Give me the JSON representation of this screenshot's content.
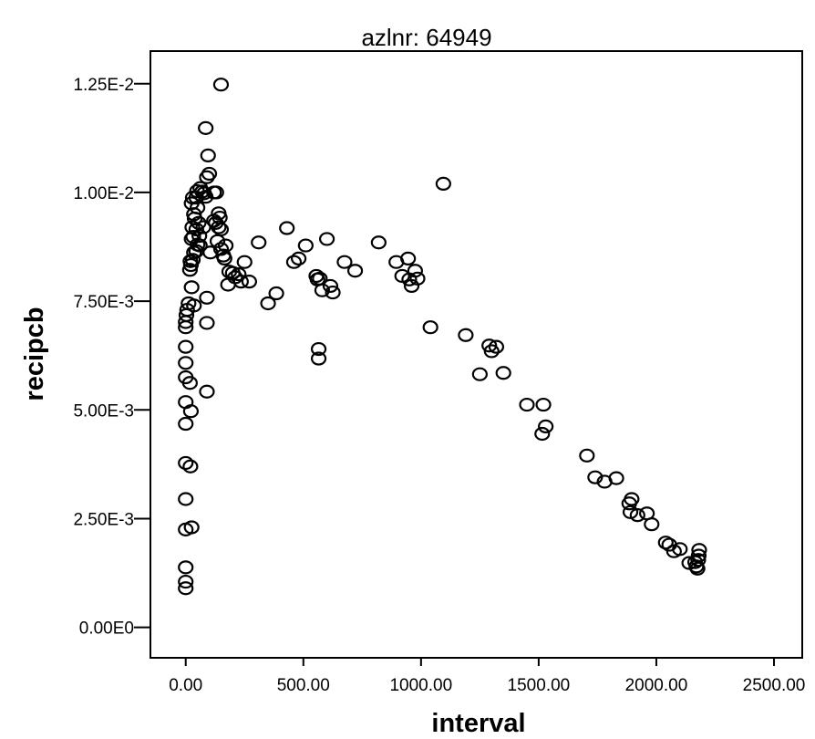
{
  "chart_data": {
    "type": "scatter",
    "title": "azlnr: 64949",
    "xlabel": "interval",
    "ylabel": "recipcb",
    "xlim": [
      -150,
      2620
    ],
    "ylim": [
      -0.0007,
      0.01325
    ],
    "x_ticks": [
      {
        "value": 0,
        "label": "0.00"
      },
      {
        "value": 500,
        "label": "500.00"
      },
      {
        "value": 1000,
        "label": "1000.00"
      },
      {
        "value": 1500,
        "label": "1500.00"
      },
      {
        "value": 2000,
        "label": "2000.00"
      },
      {
        "value": 2500,
        "label": "2500.00"
      }
    ],
    "y_ticks": [
      {
        "value": 0,
        "label": "0.00E0"
      },
      {
        "value": 0.0025,
        "label": "2.50E-3"
      },
      {
        "value": 0.005,
        "label": "5.00E-3"
      },
      {
        "value": 0.0075,
        "label": "7.50E-3"
      },
      {
        "value": 0.01,
        "label": "1.00E-2"
      },
      {
        "value": 0.0125,
        "label": "1.25E-2"
      }
    ],
    "marker": "open-circle",
    "grid": false,
    "legend": "none",
    "points": [
      [
        0,
        0.0009
      ],
      [
        0,
        0.00105
      ],
      [
        0,
        0.00138
      ],
      [
        0,
        0.00225
      ],
      [
        0,
        0.00295
      ],
      [
        0,
        0.00378
      ],
      [
        0,
        0.00468
      ],
      [
        0,
        0.00518
      ],
      [
        0,
        0.00575
      ],
      [
        0,
        0.00608
      ],
      [
        0,
        0.00645
      ],
      [
        0,
        0.0069
      ],
      [
        0,
        0.00702
      ],
      [
        3,
        0.00718
      ],
      [
        6,
        0.0073
      ],
      [
        20,
        0.0037
      ],
      [
        25,
        0.0023
      ],
      [
        22,
        0.00497
      ],
      [
        18,
        0.00562
      ],
      [
        12,
        0.00745
      ],
      [
        25,
        0.00782
      ],
      [
        18,
        0.00822
      ],
      [
        22,
        0.00833
      ],
      [
        20,
        0.00842
      ],
      [
        35,
        0.0074
      ],
      [
        30,
        0.00845
      ],
      [
        35,
        0.00862
      ],
      [
        25,
        0.00893
      ],
      [
        32,
        0.00898
      ],
      [
        28,
        0.0092
      ],
      [
        35,
        0.0095
      ],
      [
        38,
        0.0094
      ],
      [
        25,
        0.00975
      ],
      [
        30,
        0.00988
      ],
      [
        45,
        0.00988
      ],
      [
        50,
        0.00965
      ],
      [
        55,
        0.0093
      ],
      [
        45,
        0.00915
      ],
      [
        58,
        0.009
      ],
      [
        50,
        0.0088
      ],
      [
        45,
        0.00865
      ],
      [
        60,
        0.00878
      ],
      [
        48,
        0.01003
      ],
      [
        62,
        0.0101
      ],
      [
        70,
        0.01002
      ],
      [
        78,
        0.00998
      ],
      [
        75,
        0.0092
      ],
      [
        85,
        0.0099
      ],
      [
        90,
        0.01035
      ],
      [
        100,
        0.01043
      ],
      [
        95,
        0.01085
      ],
      [
        85,
        0.01148
      ],
      [
        120,
        0.01
      ],
      [
        130,
        0.01
      ],
      [
        120,
        0.00935
      ],
      [
        128,
        0.0093
      ],
      [
        140,
        0.00952
      ],
      [
        145,
        0.00942
      ],
      [
        140,
        0.0092
      ],
      [
        150,
        0.00915
      ],
      [
        135,
        0.00888
      ],
      [
        105,
        0.00862
      ],
      [
        150,
        0.0087
      ],
      [
        160,
        0.00855
      ],
      [
        165,
        0.00848
      ],
      [
        170,
        0.00878
      ],
      [
        180,
        0.00788
      ],
      [
        185,
        0.00818
      ],
      [
        200,
        0.00815
      ],
      [
        210,
        0.00805
      ],
      [
        225,
        0.00812
      ],
      [
        235,
        0.00795
      ],
      [
        250,
        0.0084
      ],
      [
        270,
        0.00795
      ],
      [
        150,
        0.01248
      ],
      [
        90,
        0.00758
      ],
      [
        90,
        0.007
      ],
      [
        90,
        0.00542
      ],
      [
        310,
        0.00885
      ],
      [
        350,
        0.00745
      ],
      [
        385,
        0.00768
      ],
      [
        430,
        0.00918
      ],
      [
        460,
        0.0084
      ],
      [
        480,
        0.00848
      ],
      [
        510,
        0.00878
      ],
      [
        555,
        0.00808
      ],
      [
        560,
        0.008
      ],
      [
        570,
        0.00802
      ],
      [
        580,
        0.00775
      ],
      [
        600,
        0.00893
      ],
      [
        615,
        0.00785
      ],
      [
        625,
        0.0077
      ],
      [
        565,
        0.0064
      ],
      [
        565,
        0.00618
      ],
      [
        675,
        0.0084
      ],
      [
        720,
        0.0082
      ],
      [
        820,
        0.00885
      ],
      [
        895,
        0.0084
      ],
      [
        920,
        0.00808
      ],
      [
        945,
        0.00848
      ],
      [
        950,
        0.008
      ],
      [
        960,
        0.00785
      ],
      [
        975,
        0.0082
      ],
      [
        985,
        0.00802
      ],
      [
        1040,
        0.0069
      ],
      [
        1095,
        0.0102
      ],
      [
        1190,
        0.00672
      ],
      [
        1250,
        0.00582
      ],
      [
        1290,
        0.00648
      ],
      [
        1300,
        0.00635
      ],
      [
        1320,
        0.00645
      ],
      [
        1350,
        0.00585
      ],
      [
        1450,
        0.00512
      ],
      [
        1520,
        0.00512
      ],
      [
        1515,
        0.00445
      ],
      [
        1530,
        0.00462
      ],
      [
        1705,
        0.00395
      ],
      [
        1740,
        0.00345
      ],
      [
        1780,
        0.00335
      ],
      [
        1830,
        0.00343
      ],
      [
        1885,
        0.00285
      ],
      [
        1890,
        0.00265
      ],
      [
        1895,
        0.00295
      ],
      [
        1920,
        0.00258
      ],
      [
        1960,
        0.00262
      ],
      [
        1980,
        0.00237
      ],
      [
        2040,
        0.00195
      ],
      [
        2055,
        0.0019
      ],
      [
        2075,
        0.00175
      ],
      [
        2100,
        0.0018
      ],
      [
        2140,
        0.00148
      ],
      [
        2165,
        0.0015
      ],
      [
        2170,
        0.0014
      ],
      [
        2175,
        0.00135
      ],
      [
        2178,
        0.00155
      ],
      [
        2180,
        0.00165
      ],
      [
        2182,
        0.00178
      ]
    ]
  }
}
